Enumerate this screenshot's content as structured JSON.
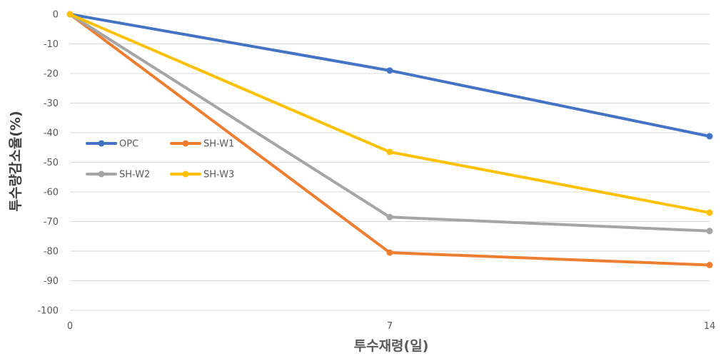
{
  "chart_data": {
    "type": "line",
    "x": [
      0,
      7,
      14
    ],
    "xlabel": "투수재령(일)",
    "ylabel": "투수량감소율(%)",
    "ylim": [
      -100,
      0
    ],
    "yticks": [
      0,
      -10,
      -20,
      -30,
      -40,
      -50,
      -60,
      -70,
      -80,
      -90,
      -100
    ],
    "grid": true,
    "legend_position": "center-left",
    "series": [
      {
        "name": "OPC",
        "color": "#4472C4",
        "values": [
          0,
          -19,
          -41.2
        ]
      },
      {
        "name": "SH-W1",
        "color": "#ED7D31",
        "values": [
          0,
          -80.5,
          -84.7
        ]
      },
      {
        "name": "SH-W2",
        "color": "#A5A5A5",
        "values": [
          0,
          -68.5,
          -73.2
        ]
      },
      {
        "name": "SH-W3",
        "color": "#FFC000",
        "values": [
          0,
          -46.5,
          -67
        ]
      }
    ]
  }
}
